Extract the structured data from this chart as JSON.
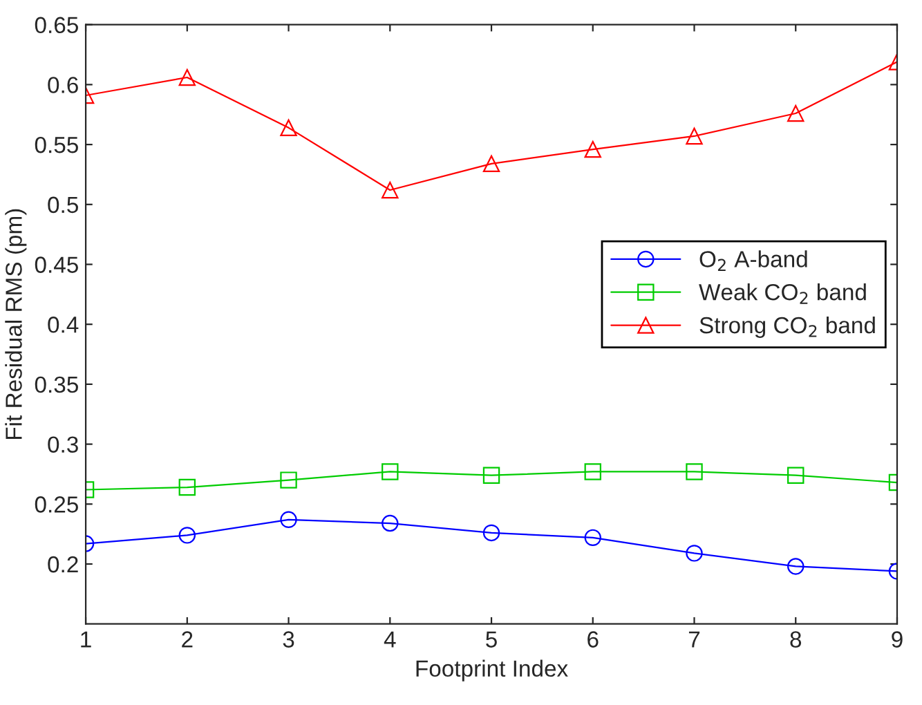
{
  "chart_data": {
    "type": "line",
    "xlabel": "Footprint Index",
    "ylabel": "Fit Residual RMS (pm)",
    "x": [
      1,
      2,
      3,
      4,
      5,
      6,
      7,
      8,
      9
    ],
    "series": [
      {
        "name": "O$_{2}$ A-band",
        "color": "#0000ff",
        "marker": "circle",
        "values": [
          0.217,
          0.224,
          0.237,
          0.234,
          0.226,
          0.222,
          0.209,
          0.198,
          0.194
        ]
      },
      {
        "name": "Weak CO$_{2}$ band",
        "color": "#00cc00",
        "marker": "square",
        "values": [
          0.262,
          0.264,
          0.27,
          0.277,
          0.274,
          0.277,
          0.277,
          0.274,
          0.268
        ]
      },
      {
        "name": "Strong CO$_{2}$ band",
        "color": "#ff0000",
        "marker": "triangle",
        "values": [
          0.591,
          0.606,
          0.564,
          0.512,
          0.534,
          0.546,
          0.557,
          0.576,
          0.619
        ]
      }
    ],
    "xlim": [
      1,
      9
    ],
    "xticks": [
      1,
      2,
      3,
      4,
      5,
      6,
      7,
      8,
      9
    ],
    "ylim": [
      0.15,
      0.65
    ],
    "yticks": [
      0.2,
      0.25,
      0.3,
      0.35,
      0.4,
      0.45,
      0.5,
      0.55,
      0.6,
      0.65
    ],
    "grid": false,
    "legend": "center right",
    "line_style": "solid"
  }
}
